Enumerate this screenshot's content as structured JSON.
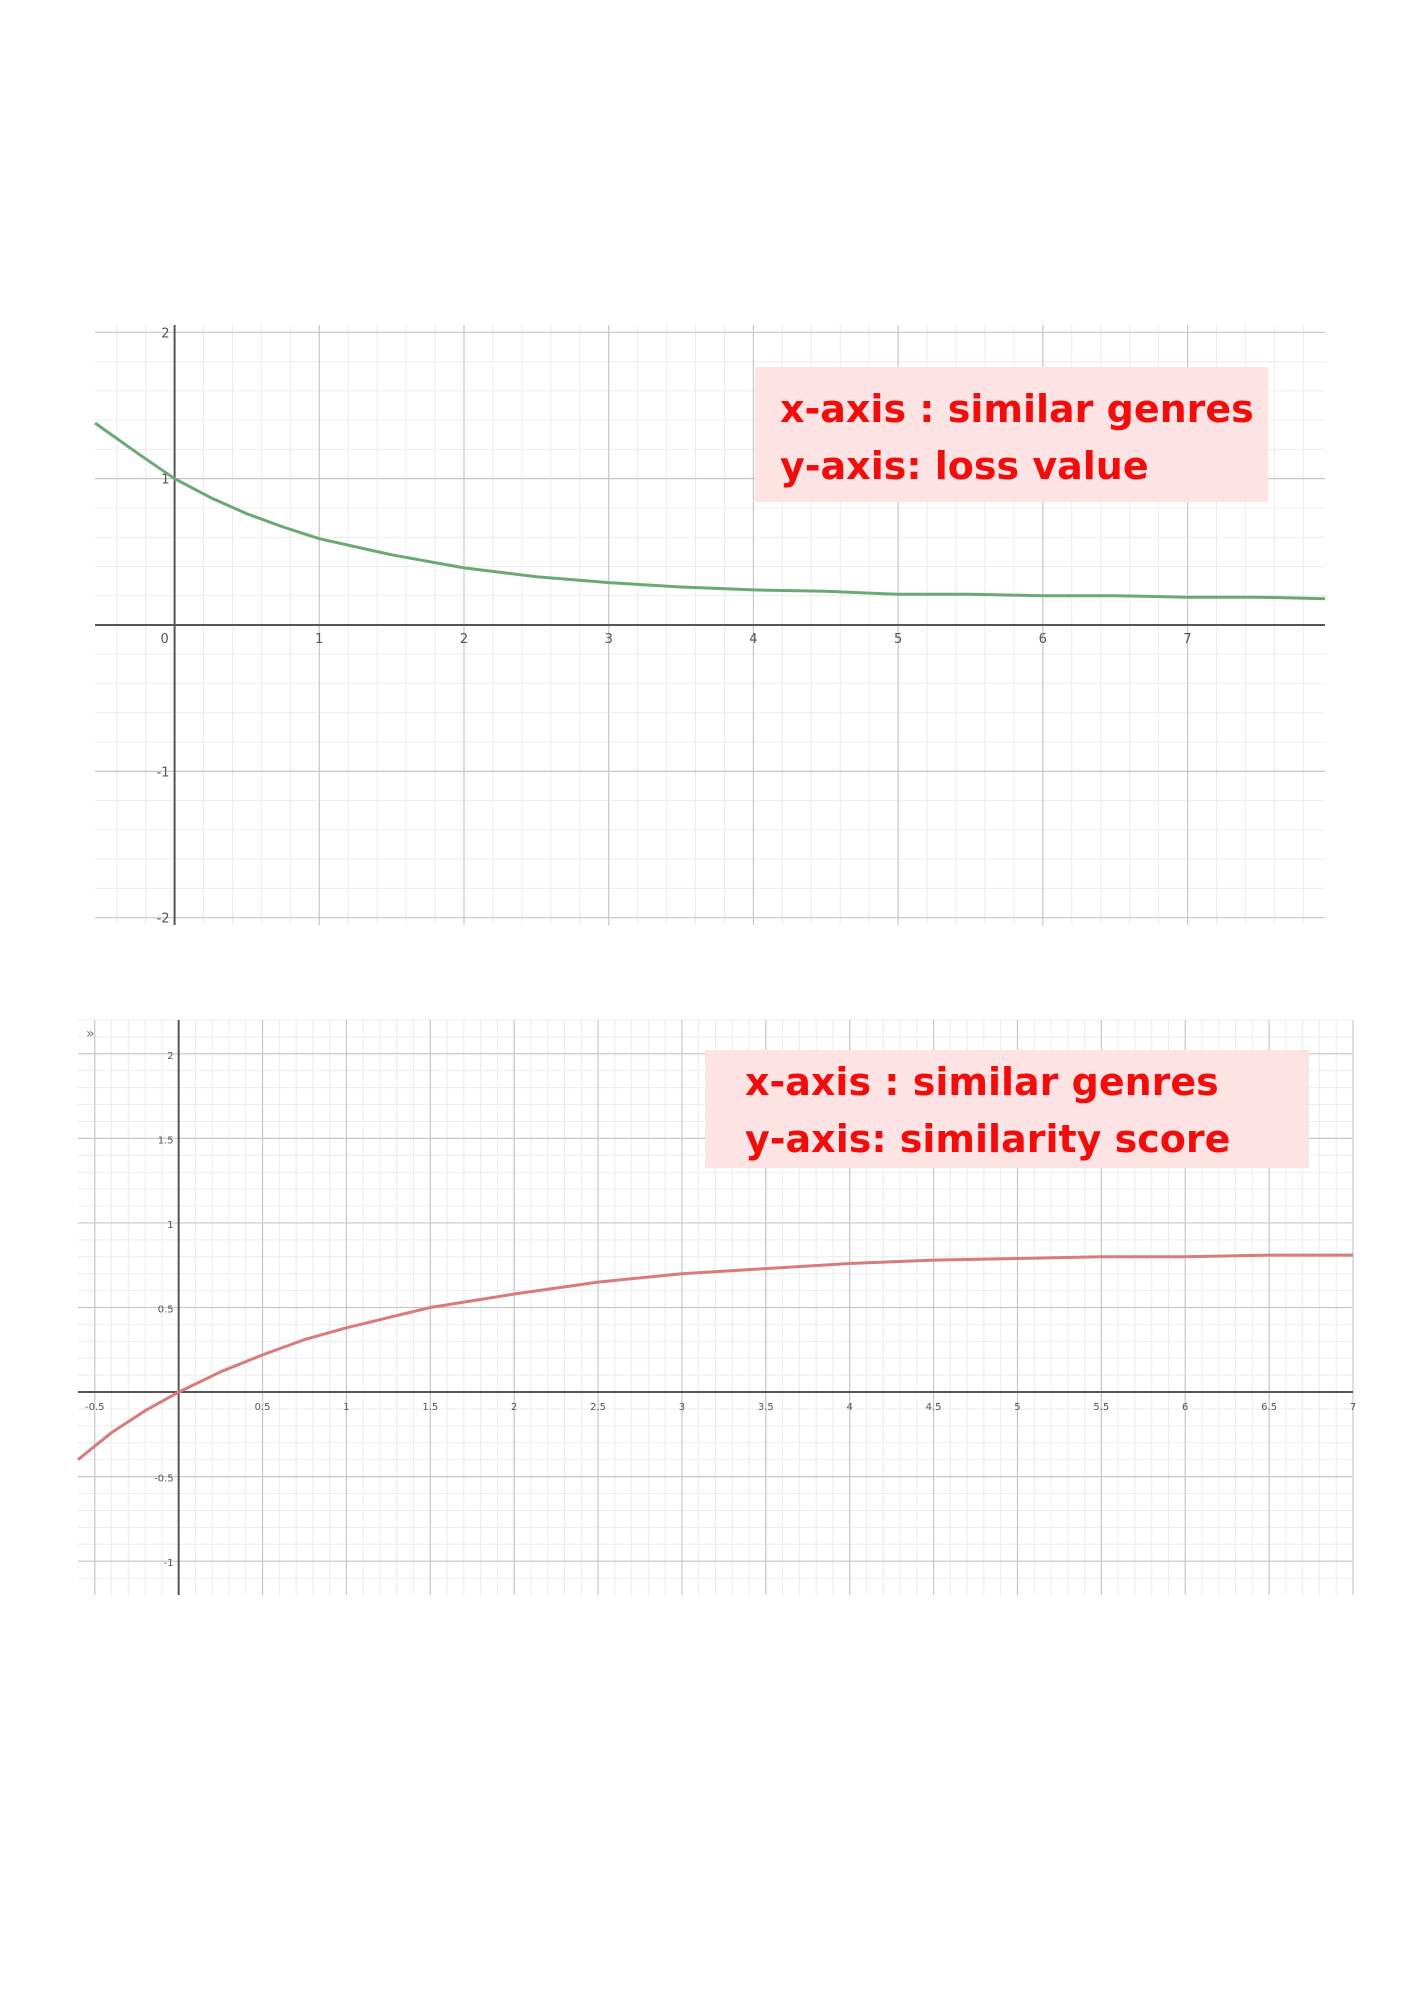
{
  "chart_data": [
    {
      "type": "line",
      "xlim": [
        -0.55,
        7.95
      ],
      "ylim": [
        -2.05,
        2.05
      ],
      "grid": true,
      "minor_grid": true,
      "x_ticks": [
        "0",
        "1",
        "2",
        "3",
        "4",
        "5",
        "6",
        "7"
      ],
      "y_ticks": [
        "2",
        "1",
        "-1",
        "-2"
      ],
      "series": [
        {
          "color": "#6aaa72",
          "x": [
            -0.55,
            -0.25,
            0,
            0.25,
            0.5,
            0.75,
            1,
            1.5,
            2,
            2.5,
            3,
            3.5,
            4,
            4.5,
            5,
            5.5,
            6,
            6.5,
            7,
            7.5,
            7.95
          ],
          "y": [
            1.38,
            1.17,
            1.0,
            0.87,
            0.76,
            0.67,
            0.59,
            0.48,
            0.39,
            0.33,
            0.29,
            0.26,
            0.24,
            0.23,
            0.21,
            0.21,
            0.2,
            0.2,
            0.19,
            0.19,
            0.18
          ]
        }
      ],
      "annotation": {
        "lines": [
          "x-axis : similar genres",
          "y-axis: loss value"
        ],
        "background": "#fde3e3",
        "color": "#f20d0d"
      }
    },
    {
      "type": "line",
      "xlim": [
        -0.6,
        7.0
      ],
      "ylim": [
        -1.2,
        2.2
      ],
      "grid": true,
      "minor_grid": true,
      "x_ticks": [
        "-0.5",
        "0.5",
        "1",
        "1.5",
        "2",
        "2.5",
        "3",
        "3.5",
        "4",
        "4.5",
        "5",
        "5.5",
        "6",
        "6.5",
        "7"
      ],
      "y_ticks": [
        "2",
        "1.5",
        "1",
        "0.5",
        "-0.5",
        "-1"
      ],
      "series": [
        {
          "color": "#d97b7b",
          "x": [
            -0.6,
            -0.4,
            -0.2,
            0,
            0.25,
            0.5,
            0.75,
            1,
            1.25,
            1.5,
            2,
            2.5,
            3,
            3.5,
            4,
            4.5,
            5,
            5.5,
            6,
            6.5,
            7
          ],
          "y": [
            -0.4,
            -0.24,
            -0.11,
            0.0,
            0.12,
            0.22,
            0.31,
            0.38,
            0.44,
            0.5,
            0.58,
            0.65,
            0.7,
            0.73,
            0.76,
            0.78,
            0.79,
            0.8,
            0.8,
            0.81,
            0.81
          ]
        }
      ],
      "annotation": {
        "lines": [
          "x-axis : similar genres",
          "y-axis: similarity score"
        ],
        "background": "#fde3e3",
        "color": "#f20d0d"
      }
    }
  ],
  "toolbar": {
    "expand_glyph": "»"
  }
}
